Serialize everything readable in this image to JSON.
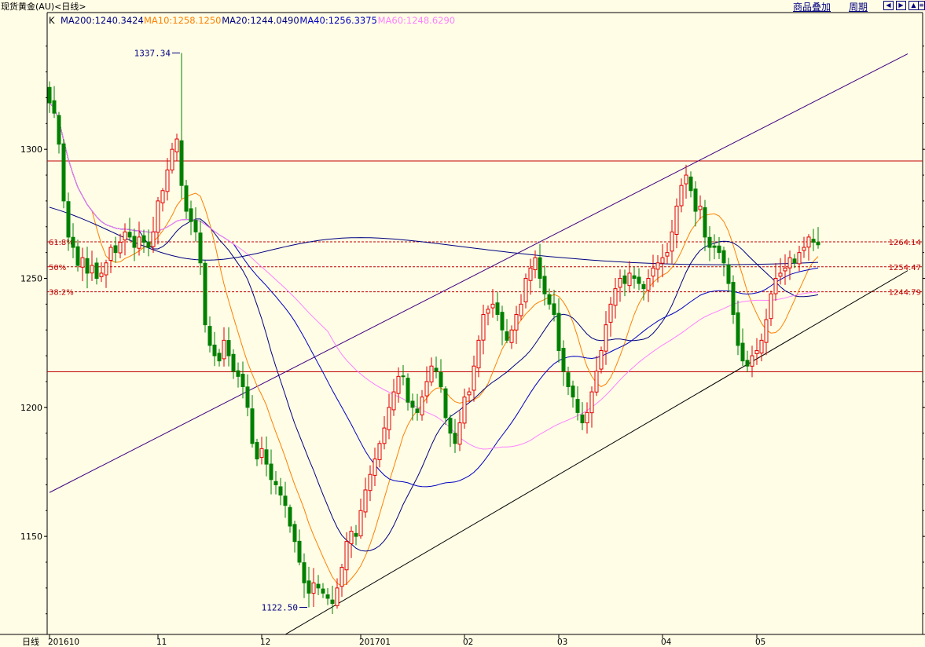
{
  "header": {
    "title": "现货黄金(AU)<日线>",
    "overlay_label": "商品叠加",
    "period_label": "周期",
    "nav_icons": [
      "arrow-left-icon",
      "arrow-right-icon",
      "arrow-up-icon",
      "list-icon"
    ]
  },
  "legend": {
    "k_label": "K",
    "items": [
      {
        "text": "MA200:1240.3424",
        "color": "#000080"
      },
      {
        "text": "MA10:1258.1250",
        "color": "#ff8000"
      },
      {
        "text": "MA20:1244.0490",
        "color": "#000080"
      },
      {
        "text": "MA40:1256.3375",
        "color": "#0000c0"
      },
      {
        "text": "MA60:1248.6290",
        "color": "#ff80ff"
      }
    ]
  },
  "chart_data": {
    "type": "candlestick",
    "y_axis": {
      "range": [
        1112,
        1353
      ],
      "ticks": [
        1150,
        1200,
        1250,
        1300
      ]
    },
    "x_axis": {
      "corner_label": "日线",
      "ticks": [
        {
          "label": "201610",
          "bar": 0
        },
        {
          "label": "11",
          "bar": 23
        },
        {
          "label": "12",
          "bar": 45
        },
        {
          "label": "201701",
          "bar": 66
        },
        {
          "label": "02",
          "bar": 88
        },
        {
          "label": "03",
          "bar": 108
        },
        {
          "label": "04",
          "bar": 130
        },
        {
          "label": "05",
          "bar": 150
        }
      ]
    },
    "annotations": {
      "high": {
        "label": "1337.34",
        "value": 1337.34,
        "bar": 28
      },
      "low": {
        "label": "1122.50",
        "value": 1122.5,
        "bar": 55
      }
    },
    "horizontal_lines": [
      {
        "value": 1295.5,
        "color": "#c00000",
        "style": "solid"
      },
      {
        "value": 1213.8,
        "color": "#c00000",
        "style": "solid"
      }
    ],
    "fib_levels": [
      {
        "left_label": "61.8%",
        "right_label": "1264.14",
        "value": 1264.14
      },
      {
        "left_label": "50%",
        "right_label": "1254.47",
        "value": 1254.47
      },
      {
        "left_label": "38.2%",
        "right_label": "1244.79",
        "value": 1244.79
      }
    ],
    "trend_lines": [
      {
        "from": [
          0,
          1167
        ],
        "to": [
          182,
          1337
        ],
        "color": "#400080"
      },
      {
        "from": [
          50,
          1112
        ],
        "to": [
          182,
          1253
        ],
        "color": "#000000"
      }
    ],
    "candles_close": [
      1318,
      1314,
      1302,
      1280,
      1266,
      1262,
      1255,
      1258,
      1252,
      1255,
      1250,
      1252,
      1256,
      1262,
      1260,
      1264,
      1268,
      1266,
      1262,
      1266,
      1264,
      1262,
      1268,
      1280,
      1284,
      1292,
      1300,
      1304,
      1286,
      1276,
      1272,
      1268,
      1256,
      1232,
      1224,
      1220,
      1218,
      1226,
      1220,
      1214,
      1212,
      1208,
      1200,
      1186,
      1180,
      1184,
      1178,
      1172,
      1170,
      1166,
      1162,
      1154,
      1148,
      1140,
      1132,
      1128,
      1132,
      1130,
      1128,
      1126,
      1124,
      1130,
      1138,
      1148,
      1152,
      1150,
      1160,
      1168,
      1174,
      1180,
      1186,
      1192,
      1200,
      1206,
      1212,
      1212,
      1202,
      1200,
      1198,
      1204,
      1210,
      1216,
      1214,
      1208,
      1196,
      1190,
      1186,
      1194,
      1204,
      1206,
      1216,
      1226,
      1236,
      1238,
      1240,
      1236,
      1230,
      1226,
      1230,
      1236,
      1240,
      1250,
      1254,
      1258,
      1250,
      1244,
      1240,
      1236,
      1222,
      1214,
      1208,
      1204,
      1198,
      1194,
      1198,
      1206,
      1214,
      1222,
      1232,
      1240,
      1246,
      1250,
      1248,
      1252,
      1250,
      1248,
      1246,
      1250,
      1254,
      1256,
      1258,
      1260,
      1268,
      1278,
      1286,
      1290,
      1284,
      1276,
      1278,
      1266,
      1262,
      1262,
      1260,
      1256,
      1248,
      1236,
      1224,
      1218,
      1216,
      1220,
      1222,
      1226,
      1234,
      1244,
      1250,
      1252,
      1254,
      1258,
      1256,
      1260,
      1262,
      1266,
      1264,
      1263
    ]
  }
}
